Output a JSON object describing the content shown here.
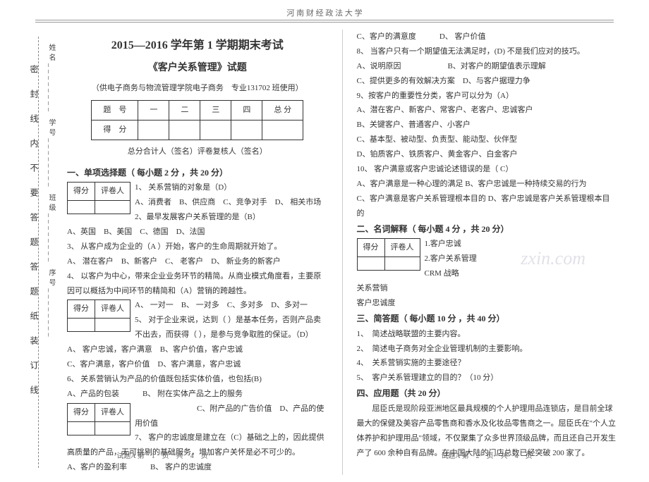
{
  "header": {
    "university": "河 南 财 经 政 法 大 学"
  },
  "binding": {
    "labels": "姓名________ 学号________ 班级________ 序号________",
    "seal_text": "密 封 线 内 不 要 答 题  答 题 纸 装 订 线"
  },
  "exam": {
    "title": "2015—2016 学年第 1 学期期末考试",
    "subtitle": "《客户关系管理》试题",
    "note": "（供电子商务与物流管理学院电子商务　专业131702 班使用）",
    "score_headers": [
      "题　号",
      "一",
      "二",
      "三",
      "四",
      "总 分"
    ],
    "score_row_label": "得　分",
    "signers": "总分合计人（签名）评卷复核人（签名）"
  },
  "parts": {
    "p1": {
      "title": "一、单项选择题（ 每小题 2 分 ，共 20 分）"
    },
    "p2": {
      "title": "二、名词解释（ 每小题 4 分 ，共 20 分）"
    },
    "p3": {
      "title": "三、简答题（ 每小题 10 分 ，共 40 分）"
    },
    "p4": {
      "title": "四、应用题（共 20 分）"
    }
  },
  "mini_table": {
    "c1": "得分",
    "c2": "评卷人"
  },
  "q_left": {
    "q1": "1、 关系营销的对象是（D）",
    "q1o": "A、消费者　B、供应商　C、竞争对手　D、 相关市场",
    "q2": "2、最早发展客户关系管理的是（B）",
    "q2o": "A、英国　B、美国　C、德国　D、法国",
    "q3": "3、 从客户成为企业的（A ）开始，客户的生命周期就开始了。",
    "q3o": "A、 潜在客户　B、新客户　C、 老客户　D、 新业务的新客户",
    "q4": "4、 以客户为中心，带来企业业务环节的精简。从商业模式角度看，主要原因可以概括为中间环节的精简和（A）营销的跨越性。",
    "q4o": "A、 一对一　B、 一对多　C、多对多　D、多对一",
    "q5": "5、 对于企业来说，达到（ ）是基本任务，否则产品卖不出去，而获得（ ），是参与竞争取胜的保证。（D）",
    "q5o": "A、 客户忠诚，客户满意　B、客户价值，客户忠诚",
    "q5o2": "C、客户满意，客户价值　D、客户满意，客户忠诚",
    "q6": "6、 关系营销认为产品的价值既包括实体价值，也包括(B)",
    "q6o": "A、产品的包装　　　B、 附在实体产品之上的服务",
    "q6o2": "　　　　　　　　C、附产品的广告价值　D、产品的使用价值",
    "q7": "7、 客户的忠诚度是建立在（C）基础之上的，因此提供高质量的产品，无可挑剔的基础服务，增加客户关怀是必不可少的。",
    "q7o": "A、客户的盈利率　　　B、 客户的忠诚度"
  },
  "q_right": {
    "q7c": "C、客户的满意度　　　D、 客户价值",
    "q8": "8、 当客户只有一个期望值无法满足时，(D) 不是我们应对的技巧。",
    "q8o": "A、说明原因　　　　　　B、对客户的期望值表示理解",
    "q8o2": "C、提供更多的有效解决方案　D、与客户据理力争",
    "q9": "9、按客户的重要性分类，客户可以分为（A）",
    "q9o": "A、潜在客户、新客户、常客户、老客户、忠诚客户",
    "q9o2": "B、关键客户、普通客户、小客户",
    "q9o3": "C、基本型、被动型、负责型、能动型、伙伴型",
    "q9o4": "D、铂质客户、铁质客户、黄金客户、白金客户",
    "q10": "10、 客户满意或客户忠诚论述错误的是（ C）",
    "q10o": "A、客户满意是一种心理的满足 B、客户忠诚是一种持续交易的行为",
    "q10o2": "C、客户满意是客户关系管理根本目的 D、客户忠诚是客户关系管理根本目的",
    "t1": "1.客户忠诚",
    "t2": "2.客户关系管理",
    "t3": "CRM 战略",
    "t4": "关系营销",
    "t5": "客户忠诚度",
    "s1": "1、　简述战略联盟的主要内容。",
    "s2": "2、　简述电子商务对全企业管理机制的主要影响。",
    "s3": "4、　关系营销实施的主要途径？",
    "s4": "5、　客户关系管理建立的目的？（10 分）",
    "app": "屈臣氏是现阶段亚洲地区最具规模的个人护理用品连锁店，是目前全球最大的保健及美容产品零售商和香水及化妆品零售商之一。屈臣氏在\"个人立体养护和护理用品\"领域，不仅聚集了众多世界顶级品牌，而且还自己开发生产了 600 余种自有品牌。在中国大陆的门店总数已经突破 200 家了。"
  },
  "footer": {
    "left": "试题A 第　1　页　共　4　页",
    "right": "试题A 第　2　页　共　4　页"
  },
  "watermark": "zxin.com"
}
